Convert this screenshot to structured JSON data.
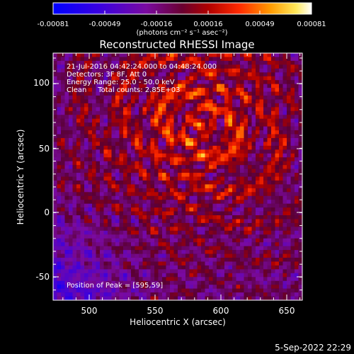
{
  "colorbar": {
    "ticks": [
      "-0.00081",
      "-0.00049",
      "-0.00016",
      "0.00016",
      "0.00049",
      "0.00081"
    ],
    "unit_label": "(photons cm⁻² s⁻¹ asec⁻²)"
  },
  "title": "Reconstructed RHESSI Image",
  "info": {
    "line1": "21-Jul-2016 04:42:24.000 to 04:48:24.000",
    "line2": "Detectors: 3F 8F, Att 0",
    "line3": "Energy Range: 25.0 - 50.0 keV",
    "line4": "Clean     Total counts: 2.85E+03"
  },
  "peak_label": "Position of Peak = [595,59]",
  "x_ticks": [
    "500",
    "550",
    "600",
    "650"
  ],
  "y_ticks": [
    "100",
    "50",
    "0",
    "-50"
  ],
  "xlabel": "Heliocentric X (arcsec)",
  "ylabel": "Heliocentric Y (arcsec)",
  "timestamp": "5-Sep-2022 22:29"
}
